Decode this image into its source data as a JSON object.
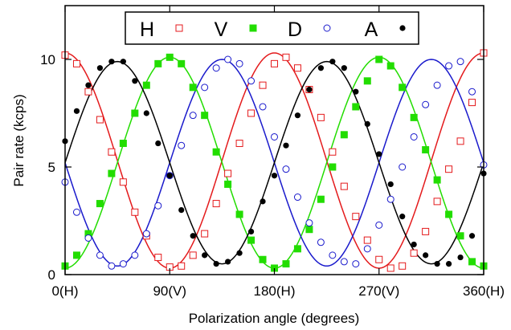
{
  "chart_data": {
    "type": "line",
    "title": "",
    "xlabel": "Polarization angle (degrees)",
    "ylabel": "Pair rate (kcps)",
    "xlim": [
      0,
      360
    ],
    "ylim": [
      0,
      12.5
    ],
    "x_ticks": [
      {
        "value": 0,
        "label": "0(H)"
      },
      {
        "value": 90,
        "label": "90(V)"
      },
      {
        "value": 180,
        "label": "180(H)"
      },
      {
        "value": 270,
        "label": "270(V)"
      },
      {
        "value": 360,
        "label": "360(H)"
      }
    ],
    "y_ticks": [
      {
        "value": 0,
        "label": "0"
      },
      {
        "value": 5,
        "label": "5"
      },
      {
        "value": 10,
        "label": "10"
      }
    ],
    "grid": false,
    "legend_position": "top-center",
    "x": [
      0,
      10,
      20,
      30,
      40,
      50,
      60,
      70,
      80,
      90,
      100,
      110,
      120,
      130,
      140,
      150,
      160,
      170,
      180,
      190,
      200,
      210,
      220,
      230,
      240,
      250,
      260,
      270,
      280,
      290,
      300,
      310,
      320,
      330,
      340,
      350,
      360
    ],
    "series": [
      {
        "name": "H",
        "color": "#e41a1c",
        "marker": "open-square",
        "fit_peak_angle": 0,
        "values": [
          10.2,
          9.8,
          8.5,
          7.2,
          5.7,
          4.3,
          2.9,
          1.8,
          0.8,
          0.35,
          0.4,
          0.9,
          1.9,
          3.3,
          4.7,
          6.1,
          7.5,
          8.8,
          9.8,
          10.1,
          9.6,
          8.6,
          7.3,
          5.7,
          4.1,
          2.7,
          1.6,
          0.7,
          0.3,
          0.4,
          1.0,
          2.0,
          3.4,
          4.9,
          6.2,
          8.0,
          10.3
        ]
      },
      {
        "name": "V",
        "color": "#22dd00",
        "marker": "filled-square",
        "fit_peak_angle": 90,
        "values": [
          0.4,
          0.9,
          1.9,
          3.3,
          4.7,
          6.1,
          7.5,
          8.8,
          9.8,
          10.1,
          9.8,
          8.7,
          7.4,
          5.7,
          4.2,
          2.8,
          1.6,
          0.7,
          0.3,
          0.5,
          1.2,
          2.1,
          3.5,
          5.0,
          6.5,
          7.8,
          9.0,
          10.0,
          9.7,
          8.7,
          7.3,
          5.8,
          4.4,
          2.8,
          1.8,
          0.6,
          0.4
        ]
      },
      {
        "name": "D",
        "color": "#1a1acc",
        "marker": "open-circle",
        "fit_peak_angle": 135,
        "values": [
          4.3,
          2.9,
          1.7,
          0.9,
          0.4,
          0.5,
          0.9,
          1.9,
          3.2,
          4.6,
          6.0,
          7.4,
          8.7,
          9.6,
          10.0,
          9.8,
          9.0,
          7.8,
          6.4,
          4.9,
          3.6,
          2.4,
          1.5,
          0.9,
          0.6,
          0.5,
          1.2,
          2.3,
          3.5,
          5.0,
          6.4,
          7.9,
          8.8,
          9.7,
          9.9,
          8.5,
          5.1
        ]
      },
      {
        "name": "A",
        "color": "#000000",
        "marker": "filled-circle",
        "fit_peak_angle": 45,
        "values": [
          6.2,
          7.6,
          8.8,
          9.6,
          9.9,
          9.9,
          9.0,
          7.5,
          6.1,
          4.6,
          3.0,
          1.8,
          0.9,
          0.5,
          0.6,
          1.0,
          2.0,
          3.4,
          4.6,
          6.0,
          7.4,
          8.6,
          9.6,
          9.9,
          9.6,
          8.5,
          7.0,
          5.6,
          4.2,
          2.7,
          1.4,
          0.9,
          0.5,
          0.5,
          0.8,
          1.8,
          4.7
        ]
      }
    ]
  }
}
